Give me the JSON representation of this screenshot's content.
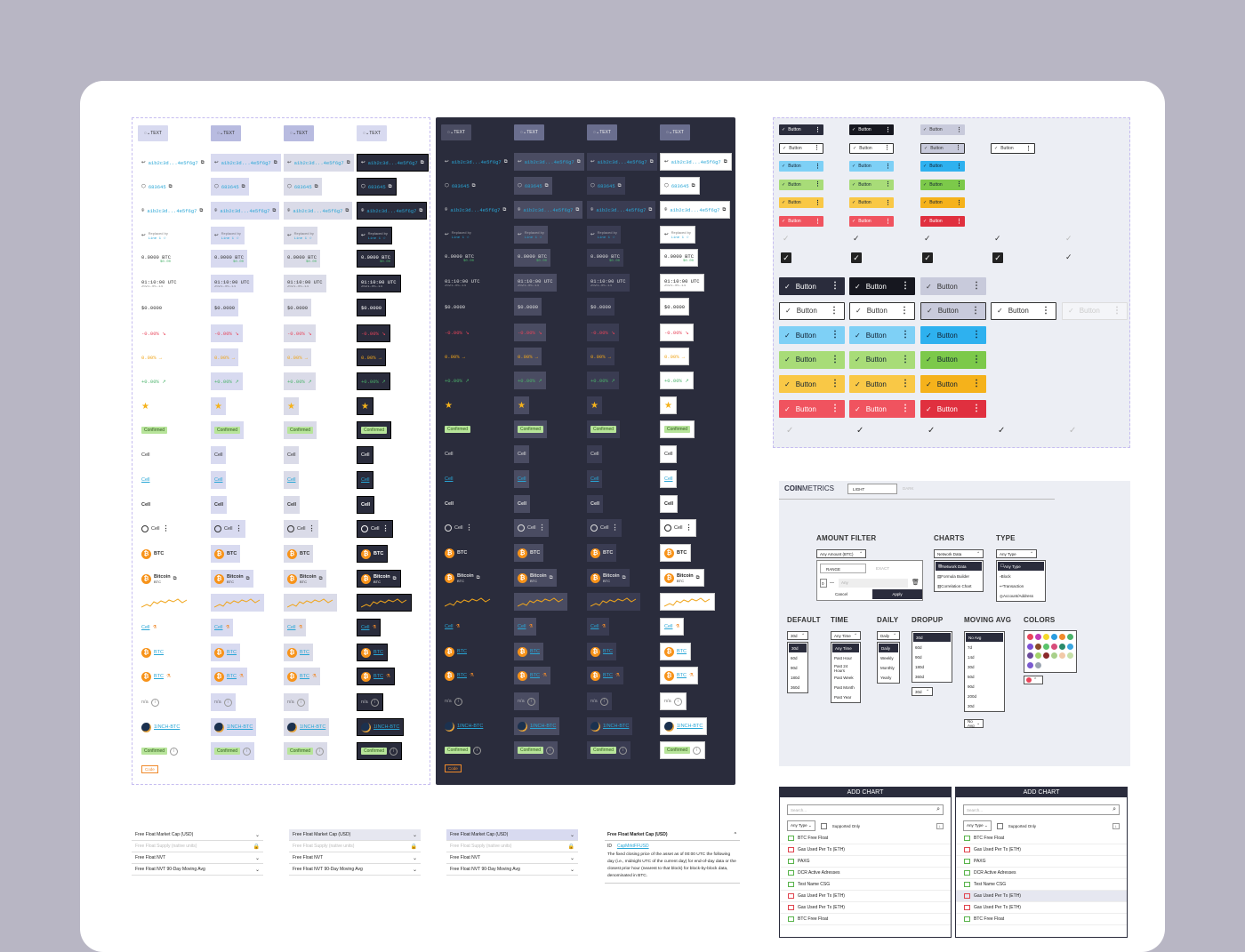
{
  "colors": {
    "background": "#b8b6c4",
    "dark_panel": "#2a2c3c",
    "link": "#29a6d6",
    "negative": "#e8445a",
    "neutral": "#f0a51b",
    "positive": "#4bb36b",
    "confirmed": "#b7e49a",
    "btc": "#f7931a"
  },
  "cells": {
    "header_text": "TEXT",
    "hash": "a1b2c3d...4e5f6g7",
    "block": "683645",
    "replaced_by_label": "Replaced by",
    "line_label": "Line 1",
    "amount": "0.0000",
    "amount_unit": "BTC",
    "amount_sub": "$0.00",
    "time": "01:10:00 UTC",
    "date": "2021-05-14",
    "usd": "$0.0000",
    "change_neg": "-0.00%",
    "change_neu": "0.00%",
    "change_pos": "+0.00%",
    "confirmed": "Confirmed",
    "cell": "Cell",
    "btc": "BTC",
    "bitcoin": "Bitcoin",
    "na": "n/a",
    "pair": "1INCH-BTC",
    "code": "Code"
  },
  "buttons": {
    "label": "Button"
  },
  "coinmetrics": {
    "logo_bold": "COIN",
    "logo_light": "METRICS",
    "tab_light": "LIGHT",
    "tab_dark": "DARK",
    "amount_filter": {
      "title": "AMOUNT FILTER",
      "select": "Any Amount (BTC)",
      "tab_range": "RANGE",
      "tab_exact": "EXACT",
      "min": "0",
      "max": "Any",
      "cancel": "Cancel",
      "apply": "Apply"
    },
    "charts": {
      "title": "CHARTS",
      "select": "Network Data",
      "items": [
        "Network Data",
        "Formula Builder",
        "Correlation Chart"
      ]
    },
    "type": {
      "title": "TYPE",
      "select": "Any Type",
      "items": [
        "Any Type",
        "Block",
        "Transaction",
        "Account/Address"
      ]
    },
    "default": {
      "title": "DEFAULT",
      "select": "30d",
      "items": [
        "30d",
        "60d",
        "90d",
        "180d",
        "360d"
      ]
    },
    "time": {
      "title": "TIME",
      "select": "Any Time",
      "items": [
        "Any Time",
        "Past Hour",
        "Past 24 Hours",
        "Past Week",
        "Past Month",
        "Past Year"
      ]
    },
    "daily": {
      "title": "DAILY",
      "select": "Daily",
      "items": [
        "Daily",
        "Weekly",
        "Monthly",
        "Yearly"
      ]
    },
    "dropup": {
      "title": "DROPUP",
      "select": "30d",
      "items": [
        "30d",
        "60d",
        "90d",
        "180d",
        "360d"
      ]
    },
    "moving_avg": {
      "title": "MOVING AVG",
      "select": "No Avg",
      "items": [
        "No Avg",
        "7d",
        "14d",
        "30d",
        "50d",
        "90d",
        "200d",
        "30d"
      ]
    },
    "colors": {
      "title": "COLORS",
      "swatches": [
        "#e8445a",
        "#c43bb5",
        "#f5d82a",
        "#2a9de0",
        "#f08a2b",
        "#4bb36b",
        "#7b4fd6",
        "#8a4a2a",
        "#5ac46b",
        "#d74c7a",
        "#2a8a6a",
        "#3aa6e0",
        "#6a4a9a",
        "#a3d36a",
        "#8a2a2a",
        "#a8d08a",
        "#f2c9a8",
        "#c6e0a8",
        "#7a5ad0",
        "#9aa4b0"
      ]
    }
  },
  "add_chart": {
    "title": "ADD CHART",
    "search_placeholder": "Search...",
    "filter": "Any Type",
    "supported_only": "Supported Only",
    "rows": [
      "BTC Free Float",
      "Gas Used Per Tx (ETH)",
      "PAXG",
      "DCR Active Adresses",
      "Test Name CSG",
      "Gas Used Per Tx (ETH)",
      "Gas Used Per Tx (ETH)",
      "BTC Free Float"
    ]
  },
  "metric_lists": {
    "items": [
      "Free Float Market Cap (USD)",
      "Free Float Supply (native units)",
      "Free Float NVT",
      "Free Float NVT 90-Day Moving Avg"
    ],
    "expanded_title": "Free Float Market Cap (USD)",
    "id_label": "ID",
    "id_value": "CapMrktFFUSD",
    "description": "The fixed closing price of the asset as of 00:00 UTC the following day (i.e., midnight UTC of the current day) for end-of-day data or the closest prior hour (nearest to that block) for block-by-block data, denominated in BTC."
  }
}
